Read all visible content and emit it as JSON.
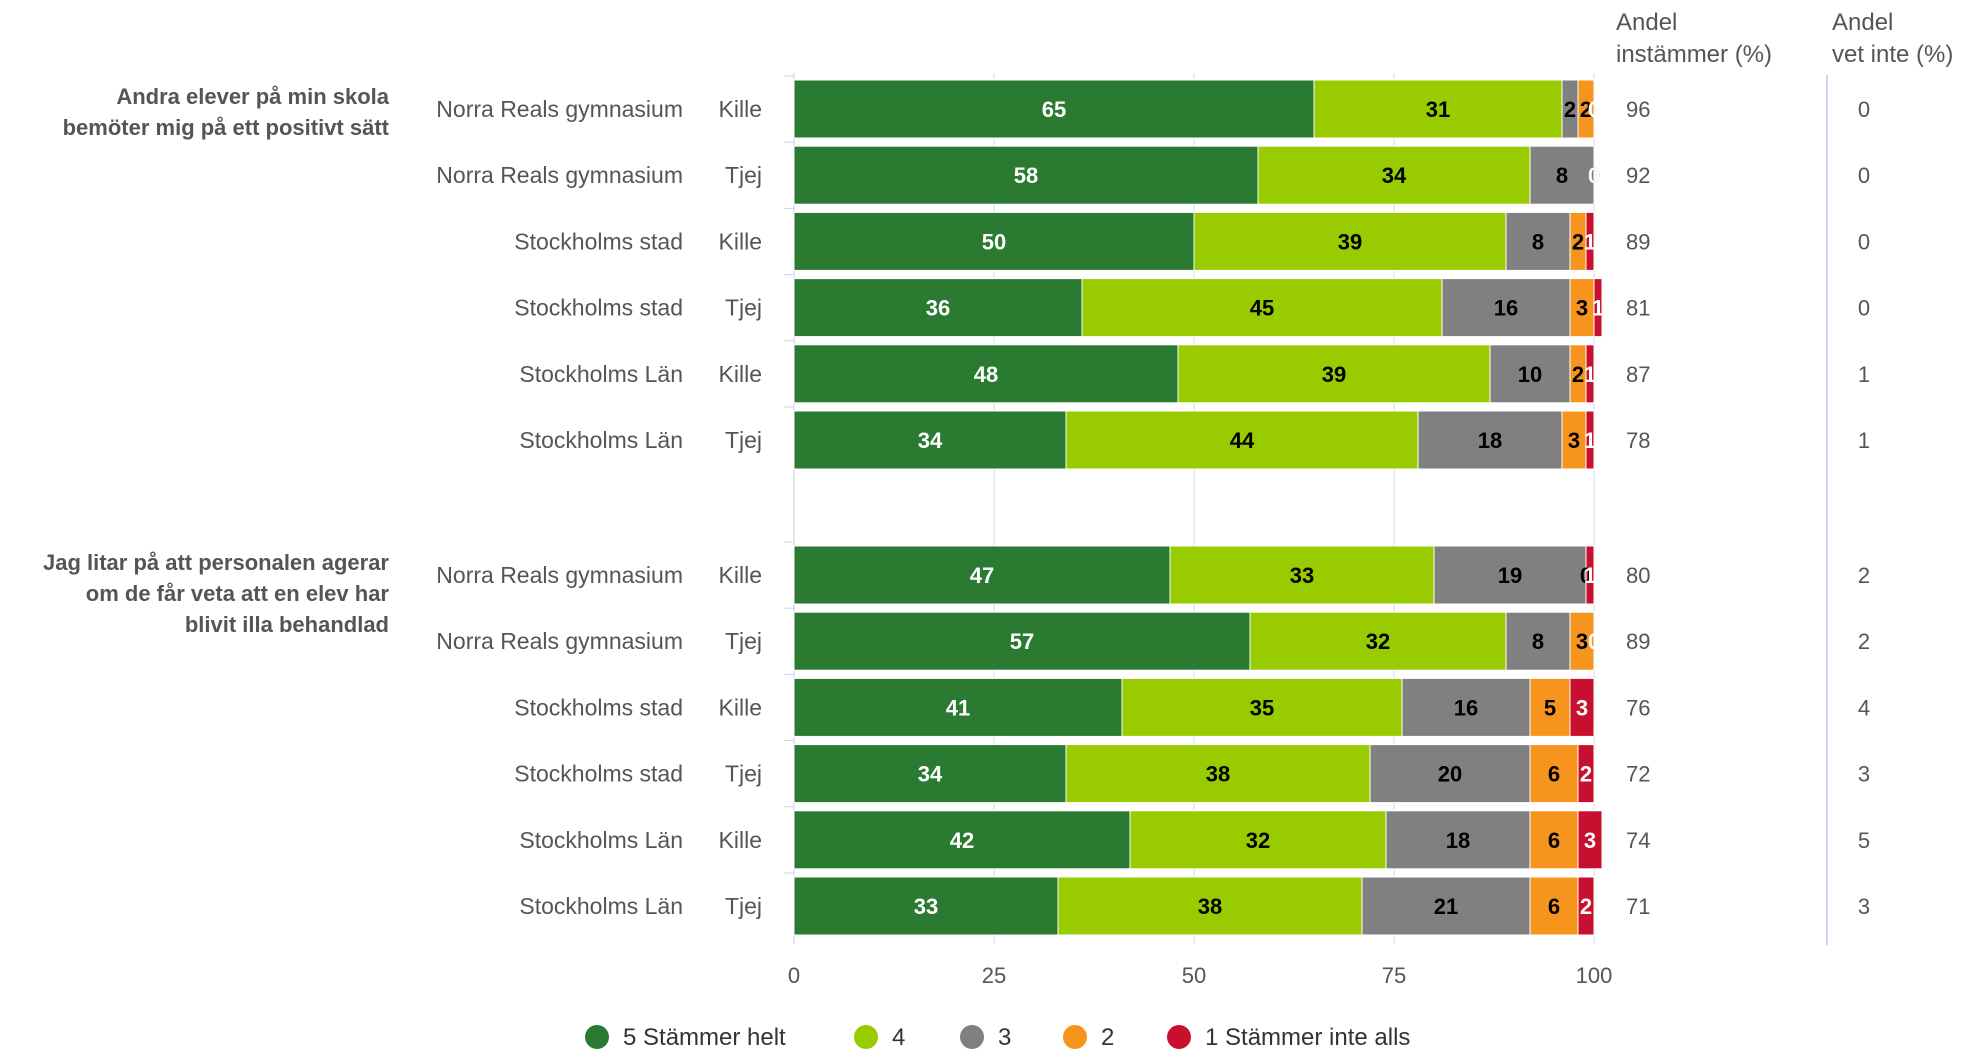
{
  "chart_data": {
    "type": "bar",
    "orientation": "horizontal-stacked",
    "xlim": [
      0,
      100
    ],
    "xticks": [
      0,
      25,
      50,
      75,
      100
    ],
    "grid": true,
    "legend_position": "bottom",
    "column_headers": {
      "instammer": [
        "Andel",
        "instämmer (%)"
      ],
      "vet_inte": [
        "Andel",
        "vet inte (%)"
      ]
    },
    "series": [
      {
        "name": "5 Stämmer helt",
        "color": "#2a7a32"
      },
      {
        "name": "4",
        "color": "#99cc00"
      },
      {
        "name": "3",
        "color": "#808080"
      },
      {
        "name": "2",
        "color": "#f7941d"
      },
      {
        "name": "1 Stämmer inte alls",
        "color": "#c8102e"
      }
    ],
    "questions": [
      {
        "label": [
          "Andra elever på min skola",
          "bemöter mig på ett positivt sätt"
        ],
        "rows": [
          {
            "unit": "Norra Reals gymnasium",
            "gender": "Kille",
            "values": [
              65,
              31,
              2,
              2,
              0
            ],
            "instammer": "96",
            "vet_inte": "0"
          },
          {
            "unit": "Norra Reals gymnasium",
            "gender": "Tjej",
            "values": [
              58,
              34,
              8,
              0,
              0
            ],
            "instammer": "92",
            "vet_inte": "0"
          },
          {
            "unit": "Stockholms stad",
            "gender": "Kille",
            "values": [
              50,
              39,
              8,
              2,
              1
            ],
            "instammer": "89",
            "vet_inte": "0"
          },
          {
            "unit": "Stockholms stad",
            "gender": "Tjej",
            "values": [
              36,
              45,
              16,
              3,
              1
            ],
            "instammer": "81",
            "vet_inte": "0"
          },
          {
            "unit": "Stockholms Län",
            "gender": "Kille",
            "values": [
              48,
              39,
              10,
              2,
              1
            ],
            "instammer": "87",
            "vet_inte": "1"
          },
          {
            "unit": "Stockholms Län",
            "gender": "Tjej",
            "values": [
              34,
              44,
              18,
              3,
              1
            ],
            "instammer": "78",
            "vet_inte": "1"
          }
        ]
      },
      {
        "label": [
          "Jag litar på att personalen agerar",
          "om de får veta att en elev har",
          "blivit illa behandlad"
        ],
        "rows": [
          {
            "unit": "Norra Reals gymnasium",
            "gender": "Kille",
            "values": [
              47,
              33,
              19,
              0,
              1
            ],
            "instammer": "80",
            "vet_inte": "2"
          },
          {
            "unit": "Norra Reals gymnasium",
            "gender": "Tjej",
            "values": [
              57,
              32,
              8,
              3,
              0
            ],
            "instammer": "89",
            "vet_inte": "2"
          },
          {
            "unit": "Stockholms stad",
            "gender": "Kille",
            "values": [
              41,
              35,
              16,
              5,
              3
            ],
            "instammer": "76",
            "vet_inte": "4"
          },
          {
            "unit": "Stockholms stad",
            "gender": "Tjej",
            "values": [
              34,
              38,
              20,
              6,
              2
            ],
            "instammer": "72",
            "vet_inte": "3"
          },
          {
            "unit": "Stockholms Län",
            "gender": "Kille",
            "values": [
              42,
              32,
              18,
              6,
              3
            ],
            "instammer": "74",
            "vet_inte": "5"
          },
          {
            "unit": "Stockholms Län",
            "gender": "Tjej",
            "values": [
              33,
              38,
              21,
              6,
              2
            ],
            "instammer": "71",
            "vet_inte": "3"
          }
        ]
      }
    ]
  }
}
